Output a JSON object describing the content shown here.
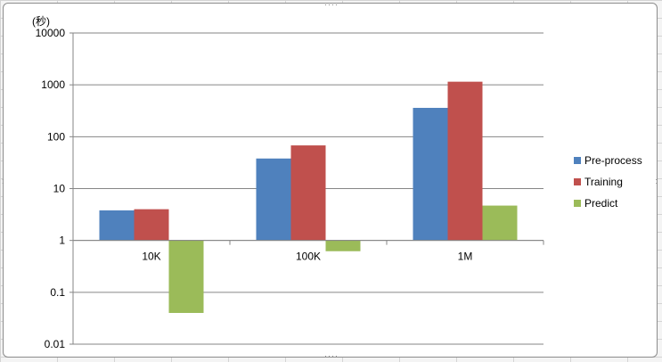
{
  "chart_data": {
    "type": "bar",
    "title": "",
    "ylabel": "(秒)",
    "xlabel": "",
    "yscale": "log",
    "ylim": [
      0.01,
      10000
    ],
    "yticks": [
      "10000",
      "1000",
      "100",
      "10",
      "1",
      "0.1",
      "0.01"
    ],
    "categories": [
      "10K",
      "100K",
      "1M"
    ],
    "series": [
      {
        "name": "Pre-process",
        "color": "#4f81bd",
        "values": [
          3.8,
          38,
          360
        ]
      },
      {
        "name": "Training",
        "color": "#c0504d",
        "values": [
          4.0,
          68,
          1150
        ]
      },
      {
        "name": "Predict",
        "color": "#9bbb59",
        "values": [
          0.04,
          0.62,
          4.7
        ]
      }
    ],
    "baseline": 1,
    "grid": true,
    "legend": "right"
  }
}
